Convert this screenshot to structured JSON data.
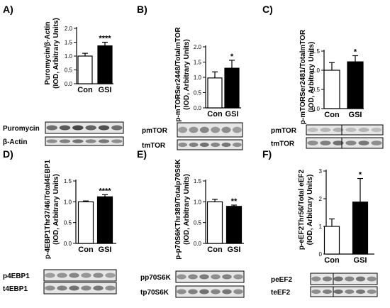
{
  "chart_data": [
    {
      "panel": "A)",
      "type": "bar",
      "ylabel": [
        "Puromycin/β-Actin",
        "(IOD, Arbitrary Units)"
      ],
      "categories": [
        "Con",
        "GSI"
      ],
      "values": [
        1.0,
        1.37
      ],
      "errors": [
        0.1,
        0.13
      ],
      "significance": [
        "",
        "****"
      ],
      "ylim": [
        0,
        2.0
      ],
      "yticks": [
        "0.0",
        "0.5",
        "1.0",
        "1.5",
        "2.0"
      ],
      "colors": [
        "#ffffff",
        "#000000"
      ],
      "blot_labels": [
        "Puromycin",
        "β-Actin"
      ]
    },
    {
      "panel": "B)",
      "type": "bar",
      "ylabel": [
        "p-mTORSer2448/TotalmTOR",
        "(IOD, Arbitrary Units)"
      ],
      "categories": [
        "Con",
        "GSI"
      ],
      "values": [
        0.98,
        1.3
      ],
      "errors": [
        0.2,
        0.26
      ],
      "significance": [
        "",
        "*"
      ],
      "ylim": [
        0,
        2.0
      ],
      "yticks": [
        "0.0",
        "0.5",
        "1.0",
        "1.5",
        "2.0"
      ],
      "colors": [
        "#ffffff",
        "#000000"
      ],
      "blot_labels": [
        "pmTOR",
        "tmTOR"
      ]
    },
    {
      "panel": "C)",
      "type": "bar",
      "ylabel": [
        "p-mTORSer2481/TotalmTOR",
        "(IOD, Arbitrary Units)"
      ],
      "categories": [
        "Con",
        "GSI"
      ],
      "values": [
        1.0,
        1.22
      ],
      "errors": [
        0.2,
        0.16
      ],
      "significance": [
        "",
        "*"
      ],
      "ylim": [
        0,
        1.5
      ],
      "yticks": [
        "0.0",
        "0.5",
        "1.0",
        "1.5"
      ],
      "colors": [
        "#ffffff",
        "#000000"
      ],
      "blot_labels": [
        "pmTOR",
        "tmTOR"
      ]
    },
    {
      "panel": "D)",
      "type": "bar",
      "ylabel": [
        "p-4EBP1Thr37/46/Total4EBP1",
        "(IOD, Arbitrary Units)"
      ],
      "categories": [
        "Con",
        "GSI"
      ],
      "values": [
        1.0,
        1.12
      ],
      "errors": [
        0.02,
        0.05
      ],
      "significance": [
        "",
        "****"
      ],
      "ylim": [
        0,
        1.5
      ],
      "yticks": [
        "0.0",
        "0.5",
        "1.0",
        "1.5"
      ],
      "colors": [
        "#ffffff",
        "#000000"
      ],
      "blot_labels": [
        "p4EBP1",
        "t4EBP1"
      ]
    },
    {
      "panel": "E)",
      "type": "bar",
      "ylabel": [
        "p-p70S6KThr389/Totalp70S6K",
        "(IOD, Arbitrary Units)"
      ],
      "categories": [
        "Con",
        "GSI"
      ],
      "values": [
        1.0,
        0.89
      ],
      "errors": [
        0.06,
        0.03
      ],
      "significance": [
        "",
        "**"
      ],
      "ylim": [
        0,
        1.5
      ],
      "yticks": [
        "0.0",
        "0.5",
        "1.0",
        "1.5"
      ],
      "colors": [
        "#ffffff",
        "#000000"
      ],
      "blot_labels": [
        "pp70S6K",
        "tp70S6K"
      ]
    },
    {
      "panel": "F)",
      "type": "bar",
      "ylabel": [
        "p-eEF2Thr56/Total eEF2",
        "(IOD, Arbitrary Units)"
      ],
      "categories": [
        "Con",
        "GSI"
      ],
      "values": [
        1.0,
        1.88
      ],
      "errors": [
        0.27,
        0.85
      ],
      "significance": [
        "",
        "*"
      ],
      "ylim": [
        0,
        3
      ],
      "yticks": [
        "0",
        "1",
        "2",
        "3"
      ],
      "colors": [
        "#ffffff",
        "#000000"
      ],
      "blot_labels": [
        "peEF2",
        "teEF2"
      ]
    }
  ]
}
